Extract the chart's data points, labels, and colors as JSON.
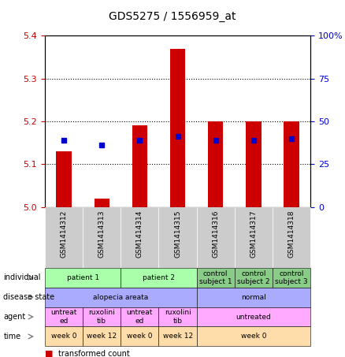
{
  "title": "GDS5275 / 1556959_at",
  "samples": [
    "GSM1414312",
    "GSM1414313",
    "GSM1414314",
    "GSM1414315",
    "GSM1414316",
    "GSM1414317",
    "GSM1414318"
  ],
  "red_values": [
    5.13,
    5.02,
    5.19,
    5.37,
    5.2,
    5.2,
    5.2
  ],
  "blue_values": [
    5.155,
    5.145,
    5.155,
    5.165,
    5.155,
    5.155,
    5.16
  ],
  "ylim": [
    5.0,
    5.4
  ],
  "yticks_left": [
    5.0,
    5.1,
    5.2,
    5.3,
    5.4
  ],
  "yticks_right": [
    0,
    25,
    50,
    75,
    100
  ],
  "yticks_right_labels": [
    "0",
    "25",
    "50",
    "75",
    "100%"
  ],
  "row_labels": [
    "individual",
    "disease state",
    "agent",
    "time"
  ],
  "individual_cells": [
    {
      "text": "patient 1",
      "cols": [
        0,
        1
      ],
      "color": "#aaffaa"
    },
    {
      "text": "patient 2",
      "cols": [
        2,
        3
      ],
      "color": "#aaffaa"
    },
    {
      "text": "control\nsubject 1",
      "cols": [
        4
      ],
      "color": "#88cc88"
    },
    {
      "text": "control\nsubject 2",
      "cols": [
        5
      ],
      "color": "#88cc88"
    },
    {
      "text": "control\nsubject 3",
      "cols": [
        6
      ],
      "color": "#88cc88"
    }
  ],
  "disease_cells": [
    {
      "text": "alopecia areata",
      "cols": [
        0,
        1,
        2,
        3
      ],
      "color": "#aaaaff"
    },
    {
      "text": "normal",
      "cols": [
        4,
        5,
        6
      ],
      "color": "#aaaaff"
    }
  ],
  "agent_cells": [
    {
      "text": "untreat\ned",
      "cols": [
        0
      ],
      "color": "#ffaaff"
    },
    {
      "text": "ruxolini\ntib",
      "cols": [
        1
      ],
      "color": "#ffaaff"
    },
    {
      "text": "untreat\ned",
      "cols": [
        2
      ],
      "color": "#ffaaff"
    },
    {
      "text": "ruxolini\ntib",
      "cols": [
        3
      ],
      "color": "#ffaaff"
    },
    {
      "text": "untreated",
      "cols": [
        4,
        5,
        6
      ],
      "color": "#ffaaff"
    }
  ],
  "time_cells": [
    {
      "text": "week 0",
      "cols": [
        0
      ],
      "color": "#ffddaa"
    },
    {
      "text": "week 12",
      "cols": [
        1
      ],
      "color": "#ffddaa"
    },
    {
      "text": "week 0",
      "cols": [
        2
      ],
      "color": "#ffddaa"
    },
    {
      "text": "week 12",
      "cols": [
        3
      ],
      "color": "#ffddaa"
    },
    {
      "text": "week 0",
      "cols": [
        4,
        5,
        6
      ],
      "color": "#ffddaa"
    }
  ],
  "bar_color": "#cc0000",
  "dot_color": "#0000cc",
  "grid_color": "#000000",
  "bg_color": "#ffffff",
  "label_color_left": "#cc0000",
  "label_color_right": "#0000cc",
  "header_bg": "#cccccc"
}
